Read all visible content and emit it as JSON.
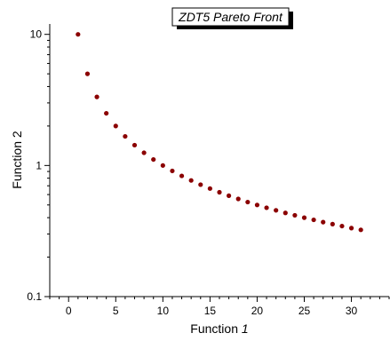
{
  "chart_data": {
    "type": "scatter",
    "title": "ZDT5 Pareto Front",
    "xlabel_main": "Function ",
    "xlabel_italic": "1",
    "ylabel": "Function 2",
    "xlim": [
      -2,
      34
    ],
    "ylim": [
      0.1,
      12
    ],
    "yscale": "log",
    "xticks": [
      0,
      5,
      10,
      15,
      20,
      25,
      30
    ],
    "xtick_labels": [
      "0",
      "5",
      "10",
      "15",
      "20",
      "25",
      "30"
    ],
    "yticks": [
      0.1,
      1,
      10
    ],
    "ytick_labels": [
      "0.1",
      "1",
      "10"
    ],
    "grid": false,
    "legend": "none",
    "marker_color": "#8b0000",
    "series": [
      {
        "x": [
          1,
          2,
          3,
          4,
          5,
          6,
          7,
          8,
          9,
          10,
          11,
          12,
          13,
          14,
          15,
          16,
          17,
          18,
          19,
          20,
          21,
          22,
          23,
          24,
          25,
          26,
          27,
          28,
          29,
          30,
          31
        ],
        "y": [
          10,
          5,
          3.333,
          2.5,
          2,
          1.667,
          1.429,
          1.25,
          1.111,
          1,
          0.909,
          0.833,
          0.769,
          0.714,
          0.667,
          0.625,
          0.588,
          0.556,
          0.526,
          0.5,
          0.476,
          0.455,
          0.435,
          0.417,
          0.4,
          0.385,
          0.37,
          0.357,
          0.345,
          0.333,
          0.323
        ]
      }
    ]
  }
}
